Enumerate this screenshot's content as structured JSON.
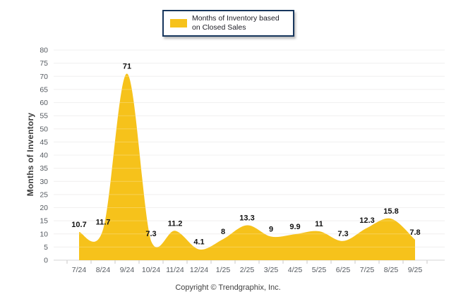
{
  "legend": {
    "line1": "Months of Inventory based",
    "line2": "on Closed Sales",
    "border_color": "#17365D",
    "background": "#FFFFFF"
  },
  "footer": {
    "copyright": "Copyright © Trendgraphix, Inc."
  },
  "colors": {
    "series_fill": "#F6C21B",
    "grid_line": "#EDEBEB",
    "axis_line": "#D6D4D4",
    "x_tick_mark": "#C9C7C7",
    "tick_label": "#555A60",
    "axis_title": "#3D3D3D",
    "data_label": "#111111",
    "footer_text": "#3F3F3F"
  },
  "chart_data": {
    "type": "area",
    "title": "",
    "series_name": "Months of Inventory based on Closed Sales",
    "categories": [
      "7/24",
      "8/24",
      "9/24",
      "10/24",
      "11/24",
      "12/24",
      "1/25",
      "2/25",
      "3/25",
      "4/25",
      "5/25",
      "6/25",
      "7/25",
      "8/25",
      "9/25"
    ],
    "values": [
      10.7,
      11.7,
      71,
      7.3,
      11.2,
      4.1,
      8,
      13.3,
      9,
      9.9,
      11,
      7.3,
      12.3,
      15.8,
      7.8
    ],
    "xlabel": "",
    "ylabel": "Months of Inventory",
    "ylim": [
      0,
      80
    ],
    "ytick_step": 5,
    "grid": true,
    "smooth": true,
    "data_labels": true,
    "legend_position": "top-center",
    "fill_color": "#F6C21B"
  }
}
